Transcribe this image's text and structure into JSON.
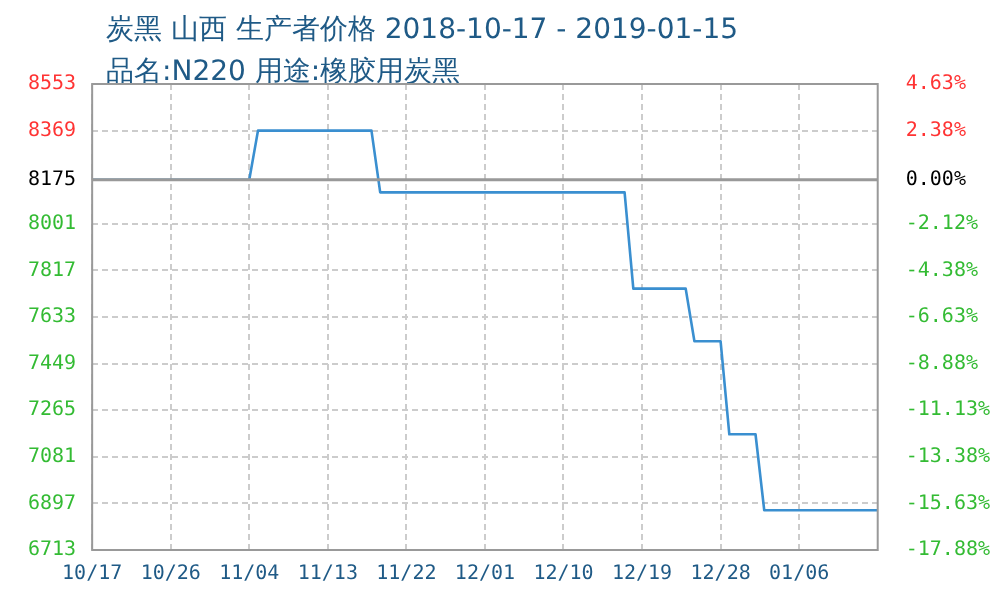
{
  "chart_data": {
    "type": "line",
    "title": "炭黑 山西 生产者价格 2018-10-17 - 2019-01-15",
    "subtitle": "品名:N220 用途:橡胶用炭黑",
    "series": [
      {
        "color": "#3a8fd0",
        "x": [
          "2018-10-17",
          "2018-11-04",
          "2018-11-05",
          "2018-11-18",
          "2018-11-19",
          "2018-12-17",
          "2018-12-18",
          "2018-12-24",
          "2018-12-25",
          "2018-12-28",
          "2018-12-29",
          "2019-01-01",
          "2019-01-02",
          "2019-01-15"
        ],
        "values": [
          8175,
          8175,
          8369,
          8369,
          8125,
          8125,
          7745,
          7745,
          7537,
          7537,
          7170,
          7170,
          6870,
          6870
        ]
      }
    ],
    "xlim": [
      "2018-10-17",
      "2019-01-15"
    ],
    "xticks": [
      {
        "value": "2018-10-17",
        "label": "10/17"
      },
      {
        "value": "2018-10-26",
        "label": "10/26"
      },
      {
        "value": "2018-11-04",
        "label": "11/04"
      },
      {
        "value": "2018-11-13",
        "label": "11/13"
      },
      {
        "value": "2018-11-22",
        "label": "11/22"
      },
      {
        "value": "2018-12-01",
        "label": "12/01"
      },
      {
        "value": "2018-12-10",
        "label": "12/10"
      },
      {
        "value": "2018-12-19",
        "label": "12/19"
      },
      {
        "value": "2018-12-28",
        "label": "12/28"
      },
      {
        "value": "2019-01-06",
        "label": "01/06"
      }
    ],
    "ylim": [
      6713,
      8553
    ],
    "yticks": [
      6713,
      6897,
      7081,
      7265,
      7449,
      7633,
      7817,
      8001,
      8175,
      8369,
      8553
    ],
    "y2lim": [
      -17.88,
      4.63
    ],
    "y2ticks": [
      {
        "value": -17.88,
        "label": "-17.88%"
      },
      {
        "value": -15.63,
        "label": "-15.63%"
      },
      {
        "value": -13.38,
        "label": "-13.38%"
      },
      {
        "value": -11.13,
        "label": "-11.13%"
      },
      {
        "value": -8.88,
        "label": "-8.88%"
      },
      {
        "value": -6.63,
        "label": "-6.63%"
      },
      {
        "value": -4.38,
        "label": "-4.38%"
      },
      {
        "value": -2.12,
        "label": "-2.12%"
      },
      {
        "value": 0,
        "label": "0.00%"
      },
      {
        "value": 2.38,
        "label": "2.38%"
      },
      {
        "value": 4.63,
        "label": "4.63%"
      }
    ],
    "ref_lines": [
      {
        "axis": "y2",
        "value": 0,
        "color": "#999999",
        "line_style": "solid"
      }
    ],
    "grid": true,
    "legend": false,
    "marker": "none",
    "line_style": "solid"
  }
}
